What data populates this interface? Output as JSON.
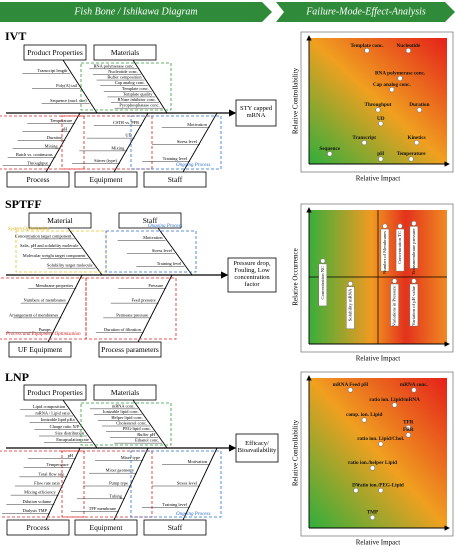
{
  "header": {
    "left": "Fish Bone / Ishikawa Diagram",
    "right": "Failure-Mode-Effect-Analysis"
  },
  "sections": [
    {
      "label": "IVT",
      "effect": "STY capped mRNA",
      "top": [
        {
          "name": "Product Properties",
          "causes": [
            "Transcript length",
            "Poly(A) tail",
            "Sequence (nucl. use)"
          ]
        },
        {
          "name": "Materials",
          "causes": [
            "RNA polymerase conc.",
            "Nucleotide conc.",
            "Buffer composition",
            "Cap analog conc.",
            "Template conc.",
            "Template quality",
            "RNase inhibitor conc.",
            "Pyrophosphatase conc."
          ]
        }
      ],
      "bottom": [
        {
          "name": "Process",
          "causes": [
            "Temperature",
            "pH",
            "Duration",
            "Mixing",
            "Batch vs. continuous",
            "Throughput"
          ]
        },
        {
          "name": "Equipment",
          "causes": [
            "CSTR vs. PFR",
            "UD",
            "Mixing",
            "Stirrer (type)"
          ]
        },
        {
          "name": "Staff",
          "causes": [
            "Motivation",
            "Stress level",
            "Training level"
          ]
        }
      ],
      "annotations": [
        "Ongoing Process"
      ],
      "fmea": {
        "x_label": "Relative Impact",
        "y_label": "Relative Controllability",
        "points": [
          {
            "label": "Template conc.",
            "x": 0.42,
            "y": 0.9
          },
          {
            "label": "Nucleotide",
            "x": 0.72,
            "y": 0.9
          },
          {
            "label": "RNA polymerase conc.",
            "x": 0.66,
            "y": 0.68
          },
          {
            "label": "Cap analog conc.",
            "x": 0.6,
            "y": 0.59
          },
          {
            "label": "Throughput",
            "x": 0.5,
            "y": 0.43
          },
          {
            "label": "Duration",
            "x": 0.8,
            "y": 0.43
          },
          {
            "label": "UD",
            "x": 0.52,
            "y": 0.32
          },
          {
            "label": "Transcript",
            "x": 0.4,
            "y": 0.17
          },
          {
            "label": "Kinetics",
            "x": 0.78,
            "y": 0.17
          },
          {
            "label": "Sequence",
            "x": 0.15,
            "y": 0.08
          },
          {
            "label": "pH",
            "x": 0.52,
            "y": 0.04
          },
          {
            "label": "Temperature",
            "x": 0.74,
            "y": 0.04
          }
        ]
      }
    },
    {
      "label": "SPTFF",
      "effect": "Pressure drop, Fouling, Low concentration factor",
      "top": [
        {
          "name": "Material",
          "causes": [
            "Concentration target component",
            "Salts, pH and solubility molecule",
            "Molecular weight target component",
            "Solubility target molecule"
          ]
        },
        {
          "name": "Staff",
          "causes": [
            "Motivation",
            "Stress level",
            "Training level"
          ]
        }
      ],
      "bottom": [
        {
          "name": "UF Equipment",
          "causes": [
            "Membrane properties",
            "Numbers of membranes",
            "Arrangement of membranes",
            "Pumps"
          ]
        },
        {
          "name": "Process parameters",
          "causes": [
            "Pressure",
            "Feed pressure",
            "Permeate pressure",
            "Duration of filtration"
          ]
        }
      ],
      "annotations": [
        "System Optimization",
        "Ongoing Process",
        "Process and Equipment Optimization"
      ],
      "fmea": {
        "x_label": "Relative Impact",
        "y_label": "Relative Occurrence",
        "points": [
          {
            "label": "Concentration NC",
            "x": 0.1,
            "y": 0.62
          },
          {
            "label": "Solubility mRNA",
            "x": 0.3,
            "y": 0.45
          },
          {
            "label": "Number of Membranes",
            "x": 0.55,
            "y": 0.88
          },
          {
            "label": "Concentration TC",
            "x": 0.66,
            "y": 0.88
          },
          {
            "label": "Transmembrane pressure",
            "x": 0.76,
            "y": 0.9
          },
          {
            "label": "Variations in Pressure",
            "x": 0.62,
            "y": 0.47
          },
          {
            "label": "Variation of pH value",
            "x": 0.76,
            "y": 0.47
          }
        ]
      }
    },
    {
      "label": "LNP",
      "effect": "Efficacy/ Bioavailability",
      "top": [
        {
          "name": "Product Properties",
          "causes": [
            "Lipid composition",
            "mRNA / Lipid ratio",
            "Ionizable lipid pKa",
            "Charge ratio N/P",
            "Size distribution",
            "Encapsulation rate"
          ]
        },
        {
          "name": "Materials",
          "causes": [
            "mRNA conc.",
            "Ionizable lipid conc.",
            "Helper lipid conc.",
            "Cholesterol conc.",
            "PEG-lipid conc.",
            "Buffer pH",
            "Ethanol conc."
          ]
        }
      ],
      "bottom": [
        {
          "name": "Process",
          "causes": [
            "pH",
            "Temperature",
            "Total flow rate",
            "Flow rate ratio",
            "Mixing efficiency",
            "Dilution volume",
            "Dialysis TMP"
          ]
        },
        {
          "name": "Equipment",
          "causes": [
            "Mixer type",
            "Mixer geometry",
            "Pump type",
            "Tubing",
            "TFF membrane"
          ]
        },
        {
          "name": "Staff",
          "causes": [
            "Motivation",
            "Stress level",
            "Training level"
          ]
        }
      ],
      "annotations": [
        "Ongoing Process"
      ],
      "fmea": {
        "x_label": "Relative Impact",
        "y_label": "Relative Controllability",
        "points": [
          {
            "label": "mRNA Feed pH",
            "x": 0.3,
            "y": 0.92
          },
          {
            "label": "mRNA conc.",
            "x": 0.76,
            "y": 0.92
          },
          {
            "label": "ratio ion. Lipid/mRNA",
            "x": 0.62,
            "y": 0.82
          },
          {
            "label": "comp. ion. Lipid",
            "x": 0.4,
            "y": 0.72
          },
          {
            "label": "TFR",
            "x": 0.72,
            "y": 0.67
          },
          {
            "label": "FRR",
            "x": 0.72,
            "y": 0.62
          },
          {
            "label": "ratio ion. Lipid/Chol.",
            "x": 0.52,
            "y": 0.56
          },
          {
            "label": "ratio ion./helper Lipid",
            "x": 0.46,
            "y": 0.4
          },
          {
            "label": "DV",
            "x": 0.34,
            "y": 0.25
          },
          {
            "label": "ratio ion./PEG-Lipid",
            "x": 0.52,
            "y": 0.25
          },
          {
            "label": "TMP",
            "x": 0.46,
            "y": 0.07
          }
        ]
      }
    }
  ]
}
